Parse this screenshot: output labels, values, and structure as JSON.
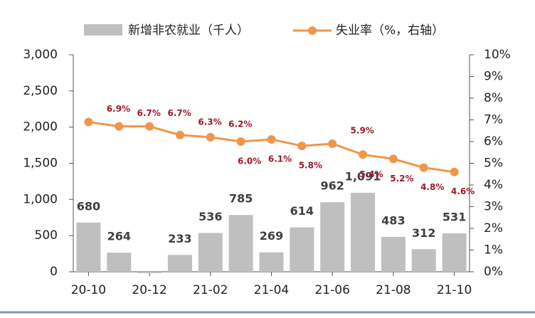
{
  "chart_data": {
    "type": "bar",
    "categories": [
      "20-10",
      null,
      "20-12",
      null,
      "21-02",
      null,
      "21-04",
      null,
      "21-06",
      null,
      "21-08",
      null,
      "21-10"
    ],
    "series": [
      {
        "name": "新增非农就业（千人）",
        "color": "#bfbfbf",
        "values": [
          680,
          264,
          -20,
          233,
          536,
          785,
          269,
          614,
          962,
          1091,
          483,
          312,
          531
        ],
        "value_labels": [
          "680",
          "264",
          null,
          "233",
          "536",
          "785",
          "269",
          "614",
          "962",
          "1,091",
          "483",
          "312",
          "531"
        ]
      },
      {
        "name": "失业率（%，右轴）",
        "type": "line",
        "axis": "y2",
        "color": "#f0964a",
        "values": [
          6.9,
          6.7,
          6.7,
          6.3,
          6.2,
          6.0,
          6.1,
          5.8,
          5.9,
          5.4,
          5.2,
          4.8,
          4.6
        ],
        "value_labels": [
          "6.9%",
          "6.7%",
          "6.7%",
          "6.3%",
          "6.2%",
          "6.0%",
          "6.1%",
          "5.8%",
          "5.9%",
          "5.4%",
          "5.2%",
          "4.8%",
          "4.6%"
        ]
      }
    ],
    "ylim": [
      0,
      3000
    ],
    "yticks": [
      0,
      {
        "value": 500,
        "label": "500"
      },
      {
        "value": 1000,
        "label": "1,000"
      },
      {
        "value": 1500,
        "label": "1,500"
      },
      {
        "value": 2000,
        "label": "2,000"
      },
      {
        "value": 2500,
        "label": "2,500"
      },
      {
        "value": 3000,
        "label": "3,000"
      }
    ],
    "y2lim": [
      0,
      10
    ],
    "y2ticks": [
      {
        "value": 0,
        "label": "0%"
      },
      {
        "value": 1,
        "label": "1%"
      },
      {
        "value": 2,
        "label": "2%"
      },
      {
        "value": 3,
        "label": "3%"
      },
      {
        "value": 4,
        "label": "4%"
      },
      {
        "value": 5,
        "label": "5%"
      },
      {
        "value": 6,
        "label": "6%"
      },
      {
        "value": 7,
        "label": "7%"
      },
      {
        "value": 8,
        "label": "8%"
      },
      {
        "value": 9,
        "label": "9%"
      },
      {
        "value": 10,
        "label": "10%"
      }
    ]
  }
}
